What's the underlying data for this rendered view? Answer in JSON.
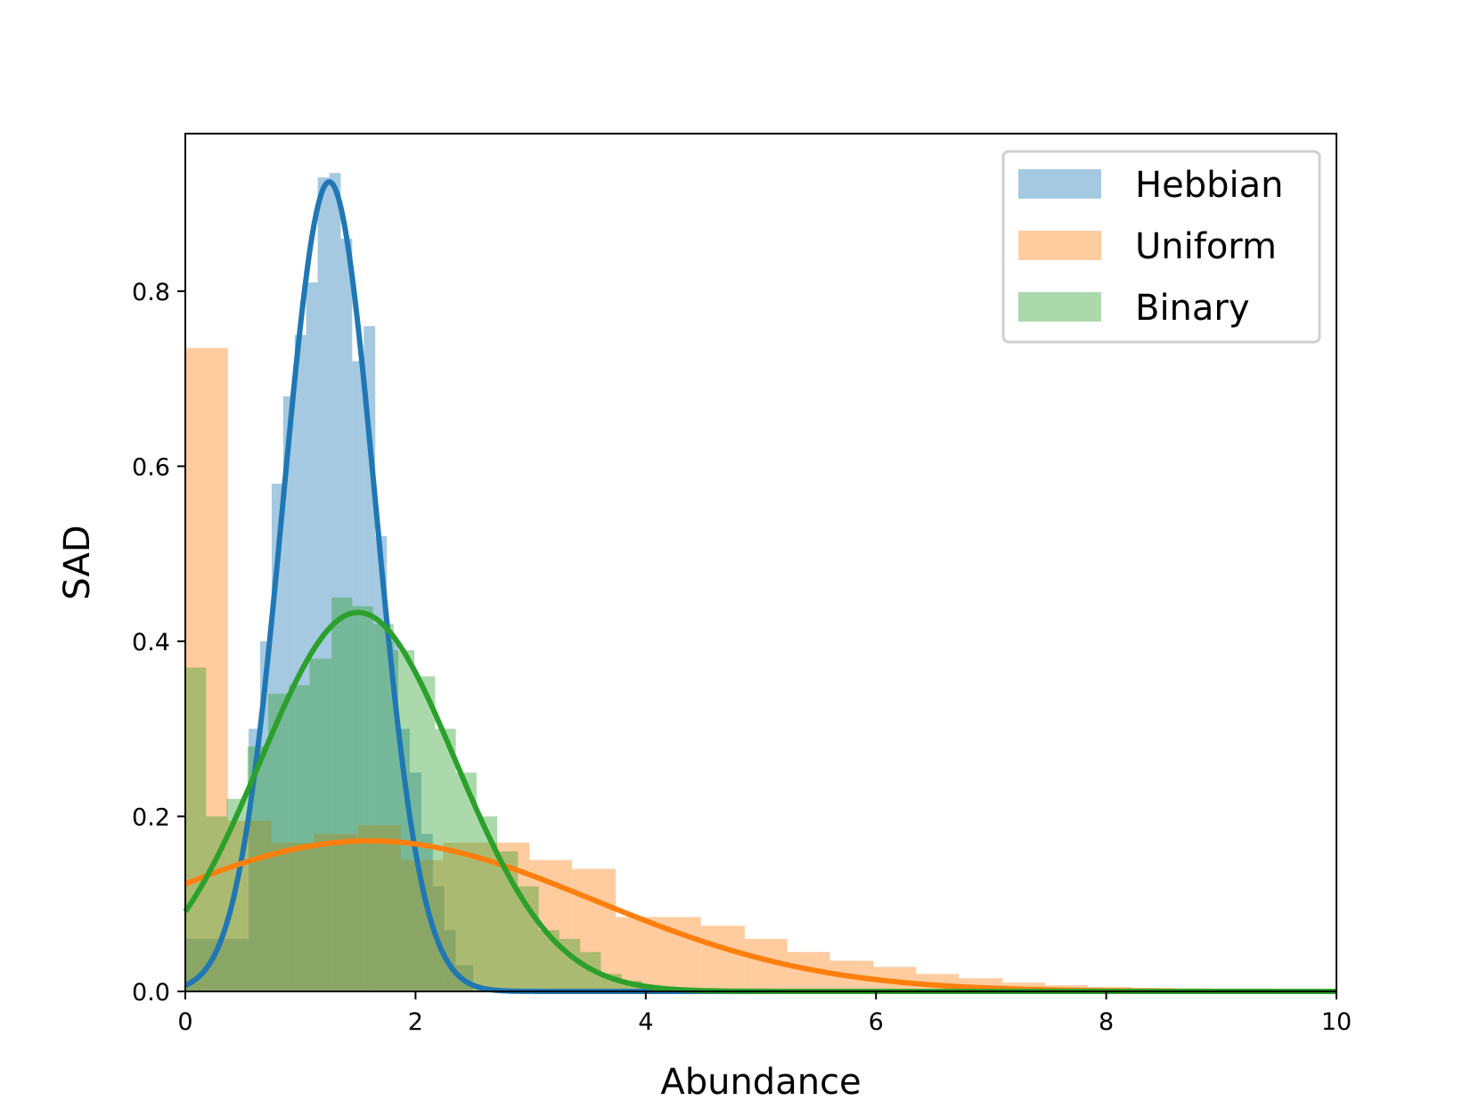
{
  "chart_data": {
    "type": "histogram",
    "xlabel": "Abundance",
    "ylabel": "SAD",
    "xlim": [
      0,
      10
    ],
    "ylim": [
      0,
      0.98
    ],
    "x_ticks": [
      {
        "value": 0,
        "label": "0"
      },
      {
        "value": 2,
        "label": "2"
      },
      {
        "value": 4,
        "label": "4"
      },
      {
        "value": 6,
        "label": "6"
      },
      {
        "value": 8,
        "label": "8"
      },
      {
        "value": 10,
        "label": "10"
      }
    ],
    "y_ticks": [
      {
        "value": 0.0,
        "label": "0.0"
      },
      {
        "value": 0.2,
        "label": "0.2"
      },
      {
        "value": 0.4,
        "label": "0.4"
      },
      {
        "value": 0.6,
        "label": "0.6"
      },
      {
        "value": 0.8,
        "label": "0.8"
      }
    ],
    "grid": false,
    "legend_position": "top-right",
    "series": [
      {
        "name": "Hebbian",
        "color": "#1f77b4",
        "bar_alpha": 0.4,
        "bins": [
          [
            0.0,
            0.55,
            0.06
          ],
          [
            0.55,
            0.65,
            0.3
          ],
          [
            0.65,
            0.75,
            0.4
          ],
          [
            0.75,
            0.85,
            0.58
          ],
          [
            0.85,
            0.95,
            0.68
          ],
          [
            0.95,
            1.05,
            0.75
          ],
          [
            1.05,
            1.15,
            0.81
          ],
          [
            1.15,
            1.25,
            0.93
          ],
          [
            1.25,
            1.35,
            0.935
          ],
          [
            1.35,
            1.45,
            0.86
          ],
          [
            1.45,
            1.55,
            0.72
          ],
          [
            1.55,
            1.65,
            0.76
          ],
          [
            1.65,
            1.75,
            0.52
          ],
          [
            1.75,
            1.85,
            0.4
          ],
          [
            1.85,
            1.95,
            0.3
          ],
          [
            1.95,
            2.05,
            0.25
          ],
          [
            2.05,
            2.15,
            0.18
          ],
          [
            2.15,
            2.25,
            0.12
          ],
          [
            2.25,
            2.35,
            0.07
          ],
          [
            2.35,
            2.5,
            0.03
          ]
        ],
        "fit": {
          "type": "gaussian",
          "mean": 1.25,
          "sd": 0.4,
          "peak": 0.925
        }
      },
      {
        "name": "Uniform",
        "color": "#ff7f0e",
        "bar_alpha": 0.4,
        "bins": [
          [
            0.0,
            0.37,
            0.735
          ],
          [
            0.37,
            0.75,
            0.195
          ],
          [
            0.75,
            1.12,
            0.17
          ],
          [
            1.12,
            1.5,
            0.18
          ],
          [
            1.5,
            1.87,
            0.19
          ],
          [
            1.87,
            2.24,
            0.15
          ],
          [
            2.24,
            2.62,
            0.17
          ],
          [
            2.62,
            2.99,
            0.17
          ],
          [
            2.99,
            3.36,
            0.15
          ],
          [
            3.36,
            3.74,
            0.14
          ],
          [
            3.74,
            4.11,
            0.085
          ],
          [
            4.11,
            4.48,
            0.085
          ],
          [
            4.48,
            4.86,
            0.075
          ],
          [
            4.86,
            5.23,
            0.06
          ],
          [
            5.23,
            5.6,
            0.045
          ],
          [
            5.6,
            5.98,
            0.035
          ],
          [
            5.98,
            6.35,
            0.028
          ],
          [
            6.35,
            6.72,
            0.02
          ],
          [
            6.72,
            7.1,
            0.015
          ],
          [
            7.1,
            7.47,
            0.01
          ],
          [
            7.47,
            7.84,
            0.007
          ],
          [
            7.84,
            8.22,
            0.005
          ],
          [
            8.22,
            8.59,
            0.004
          ],
          [
            8.59,
            8.96,
            0.003
          ],
          [
            8.96,
            9.34,
            0.002
          ],
          [
            9.34,
            10.0,
            0.002
          ]
        ],
        "fit": {
          "type": "gaussian",
          "mean": 1.6,
          "sd": 1.95,
          "peak": 0.172
        }
      },
      {
        "name": "Binary",
        "color": "#2ca02c",
        "bar_alpha": 0.4,
        "bins": [
          [
            0.0,
            0.18,
            0.37
          ],
          [
            0.18,
            0.36,
            0.2
          ],
          [
            0.36,
            0.54,
            0.22
          ],
          [
            0.54,
            0.72,
            0.28
          ],
          [
            0.72,
            0.9,
            0.34
          ],
          [
            0.9,
            1.08,
            0.35
          ],
          [
            1.08,
            1.27,
            0.38
          ],
          [
            1.27,
            1.45,
            0.45
          ],
          [
            1.45,
            1.63,
            0.44
          ],
          [
            1.63,
            1.81,
            0.42
          ],
          [
            1.81,
            1.99,
            0.39
          ],
          [
            1.99,
            2.17,
            0.36
          ],
          [
            2.17,
            2.35,
            0.3
          ],
          [
            2.35,
            2.53,
            0.25
          ],
          [
            2.53,
            2.71,
            0.2
          ],
          [
            2.71,
            2.89,
            0.16
          ],
          [
            2.89,
            3.07,
            0.12
          ],
          [
            3.07,
            3.25,
            0.07
          ],
          [
            3.25,
            3.43,
            0.06
          ],
          [
            3.43,
            3.61,
            0.045
          ],
          [
            3.61,
            3.79,
            0.02
          ],
          [
            3.79,
            3.97,
            0.012
          ],
          [
            3.97,
            4.15,
            0.006
          ],
          [
            4.15,
            4.5,
            0.003
          ]
        ],
        "fit": {
          "type": "gaussian",
          "mean": 1.5,
          "sd": 0.85,
          "peak": 0.433
        }
      }
    ]
  }
}
